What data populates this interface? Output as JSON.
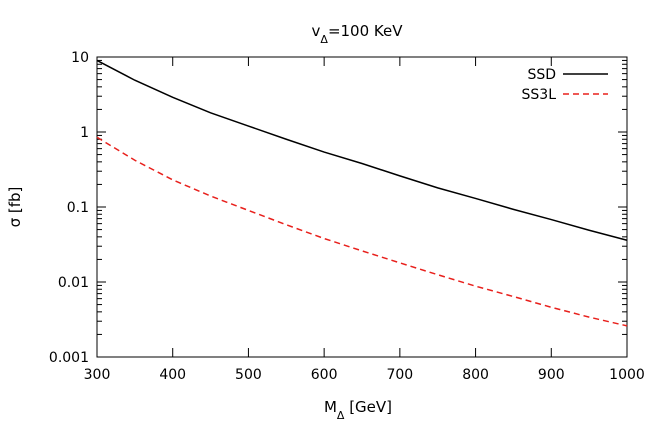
{
  "chart_data": {
    "type": "line",
    "title_main": "v",
    "title_sub": "Δ",
    "title_rest": "=100 KeV",
    "xlabel_main": "M",
    "xlabel_sub": "Δ",
    "xlabel_rest": " [GeV]",
    "ylabel": "σ [fb]",
    "xlim": [
      300,
      1000
    ],
    "ylim": [
      0.001,
      10
    ],
    "yscale": "log",
    "grid": false,
    "legend_position": "top-right",
    "x_ticks": [
      "300",
      "400",
      "500",
      "600",
      "700",
      "800",
      "900",
      "1000"
    ],
    "y_ticks": [
      "0.001",
      "0.01",
      "0.1",
      "1",
      "10"
    ],
    "series": [
      {
        "name": "SSD",
        "color": "#000000",
        "dash": "solid",
        "x": [
          300,
          350,
          400,
          450,
          500,
          550,
          600,
          650,
          700,
          750,
          800,
          850,
          900,
          950,
          1000
        ],
        "y": [
          9.0,
          4.9,
          2.9,
          1.8,
          1.2,
          0.8,
          0.54,
          0.38,
          0.26,
          0.18,
          0.13,
          0.093,
          0.068,
          0.049,
          0.036
        ]
      },
      {
        "name": "SS3L",
        "color": "#e8201c",
        "dash": "dashed",
        "x": [
          300,
          350,
          400,
          450,
          500,
          550,
          600,
          650,
          700,
          750,
          800,
          850,
          900,
          950,
          1000
        ],
        "y": [
          0.85,
          0.42,
          0.23,
          0.14,
          0.09,
          0.058,
          0.038,
          0.026,
          0.018,
          0.0125,
          0.0088,
          0.0064,
          0.0046,
          0.0034,
          0.0026
        ]
      }
    ]
  }
}
